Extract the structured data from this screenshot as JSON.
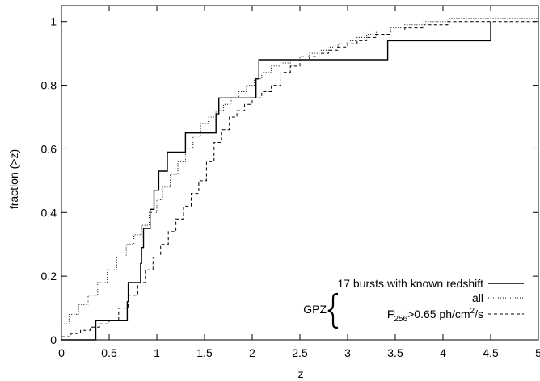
{
  "chart_data": {
    "type": "line",
    "title": "",
    "xlabel": "z",
    "ylabel": "fraction (>z)",
    "xlim": [
      0,
      5
    ],
    "ylim": [
      0,
      1.05
    ],
    "xticks": [
      0,
      0.5,
      1,
      1.5,
      2,
      2.5,
      3,
      3.5,
      4,
      4.5,
      5
    ],
    "xtick_labels": [
      "0",
      "0.5",
      "1",
      "1.5",
      "2",
      "2.5",
      "3",
      "3.5",
      "4",
      "4.5",
      "5"
    ],
    "yticks": [
      0,
      0.2,
      0.4,
      0.6,
      0.8,
      1
    ],
    "ytick_labels": [
      "0",
      "0.2",
      "0.4",
      "0.6",
      "0.8",
      "1"
    ],
    "grid": false,
    "legend_position": "bottom-right",
    "legend_group_label": "GPZ",
    "series": [
      {
        "name": "17 bursts with known redshift",
        "style": "solid",
        "x": [
          0,
          0.36,
          0.69,
          0.7,
          0.83,
          0.84,
          0.86,
          0.93,
          0.97,
          1.02,
          1.11,
          1.3,
          1.62,
          1.65,
          2.04,
          2.07,
          3.42,
          4.5
        ],
        "y": [
          0,
          0.06,
          0.12,
          0.18,
          0.24,
          0.29,
          0.35,
          0.41,
          0.47,
          0.53,
          0.59,
          0.65,
          0.71,
          0.76,
          0.82,
          0.88,
          0.94,
          1.0
        ]
      },
      {
        "name": "all",
        "style": "dotted",
        "x": [
          0,
          0.08,
          0.18,
          0.28,
          0.38,
          0.48,
          0.58,
          0.68,
          0.76,
          0.84,
          0.92,
          1.0,
          1.06,
          1.14,
          1.22,
          1.3,
          1.38,
          1.46,
          1.54,
          1.62,
          1.7,
          1.78,
          1.86,
          1.94,
          2.02,
          2.1,
          2.2,
          2.3,
          2.4,
          2.5,
          2.6,
          2.7,
          2.8,
          2.9,
          3.0,
          3.1,
          3.2,
          3.3,
          3.45,
          3.6,
          3.8,
          4.05,
          5.0
        ],
        "y": [
          0.05,
          0.08,
          0.11,
          0.14,
          0.18,
          0.22,
          0.26,
          0.3,
          0.33,
          0.36,
          0.4,
          0.44,
          0.48,
          0.52,
          0.56,
          0.6,
          0.64,
          0.68,
          0.7,
          0.72,
          0.74,
          0.76,
          0.78,
          0.8,
          0.82,
          0.84,
          0.86,
          0.87,
          0.88,
          0.89,
          0.9,
          0.91,
          0.92,
          0.93,
          0.94,
          0.95,
          0.96,
          0.97,
          0.98,
          0.99,
          1.0,
          1.01,
          1.01
        ]
      },
      {
        "name": "F256>0.65 ph/cm2/s",
        "style": "dashed",
        "x": [
          0,
          0.1,
          0.2,
          0.3,
          0.4,
          0.5,
          0.6,
          0.7,
          0.8,
          0.88,
          0.96,
          1.04,
          1.12,
          1.2,
          1.28,
          1.36,
          1.44,
          1.52,
          1.6,
          1.68,
          1.76,
          1.84,
          1.92,
          2.0,
          2.1,
          2.2,
          2.3,
          2.4,
          2.5,
          2.6,
          2.7,
          2.8,
          2.9,
          3.0,
          3.1,
          3.2,
          3.3,
          3.45,
          3.6,
          3.8,
          4.05,
          5.0
        ],
        "y": [
          0.01,
          0.02,
          0.03,
          0.04,
          0.05,
          0.06,
          0.1,
          0.14,
          0.18,
          0.22,
          0.26,
          0.3,
          0.34,
          0.38,
          0.42,
          0.46,
          0.5,
          0.56,
          0.62,
          0.66,
          0.7,
          0.72,
          0.74,
          0.76,
          0.78,
          0.8,
          0.84,
          0.86,
          0.88,
          0.89,
          0.9,
          0.91,
          0.92,
          0.93,
          0.94,
          0.95,
          0.96,
          0.97,
          0.98,
          0.99,
          1.0,
          1.01
        ]
      }
    ]
  }
}
